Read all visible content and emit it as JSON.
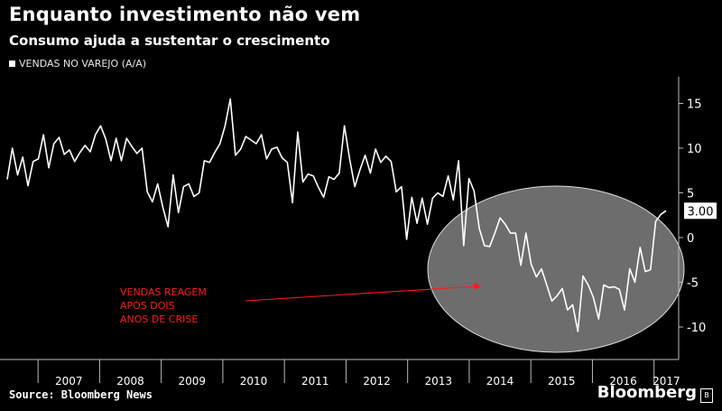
{
  "title": "Enquanto investimento não vem",
  "subtitle": "Consumo ajuda a sustentar o crescimento",
  "source": "Source: Bloomberg News",
  "brand": "Bloomberg",
  "chart_data": {
    "type": "line",
    "series": [
      {
        "name": "VENDAS NO VAREJO (A/A)",
        "color": "#ffffff",
        "values": [
          6.5,
          10,
          7,
          9,
          5.8,
          8.5,
          8.8,
          11.5,
          7.8,
          10.5,
          11.2,
          9.3,
          9.8,
          8.5,
          9.5,
          10.3,
          9.6,
          11.5,
          12.5,
          11,
          8.6,
          11.1,
          8.6,
          11.1,
          10.2,
          9.4,
          10,
          5.1,
          4,
          6,
          3.4,
          1.2,
          7,
          2.8,
          5.7,
          6,
          4.6,
          5,
          8.6,
          8.4,
          9.5,
          10.5,
          12.5,
          15.5,
          9.2,
          9.9,
          11.3,
          10.9,
          10.5,
          11.5,
          8.8,
          9.9,
          10.1,
          8.9,
          8.4,
          3.9,
          11.8,
          6.2,
          7.1,
          6.9,
          5.6,
          4.5,
          6.8,
          6.5,
          7.2,
          12.5,
          8.8,
          5.7,
          7.6,
          9.2,
          7.2,
          9.9,
          8.4,
          9.1,
          8.5,
          5.1,
          5.7,
          -0.2,
          4.5,
          1.6,
          4.4,
          1.5,
          4.4,
          5,
          4.6,
          6.9,
          4.2,
          8.6,
          -0.9,
          6.6,
          5.2,
          1,
          -0.9,
          -1,
          0.5,
          2.2,
          1.5,
          0.5,
          0.5,
          -3.1,
          0.5,
          -3,
          -4.4,
          -3.5,
          -5.3,
          -7.1,
          -6.5,
          -5.7,
          -8.1,
          -7.5,
          -10.5,
          -4.3,
          -5.3,
          -6.7,
          -9.1,
          -5.3,
          -5.6,
          -5.5,
          -5.8,
          -8.1,
          -3.5,
          -5,
          -1.1,
          -3.8,
          -3.6,
          1.8,
          2.6,
          3
        ]
      }
    ],
    "x_start_year": 2006.5,
    "x_end_year": 2017.4,
    "year_labels": [
      "2007",
      "2008",
      "2009",
      "2010",
      "2011",
      "2012",
      "2013",
      "2014",
      "2015",
      "2016",
      "2017"
    ],
    "y_ticks": [
      "15",
      "10",
      "5",
      "0",
      "-5",
      "-10"
    ],
    "y_tick_values": [
      15,
      10,
      5,
      0,
      -5,
      -10
    ],
    "ylim": [
      -13,
      18
    ],
    "last_value_label": "3.00",
    "annotation": {
      "text_lines": [
        "VENDAS REAGEM",
        "APÓS DOIS",
        "ANOS DE CRISE"
      ],
      "color": "#ff1a1a"
    },
    "highlight_color": "#808080"
  }
}
